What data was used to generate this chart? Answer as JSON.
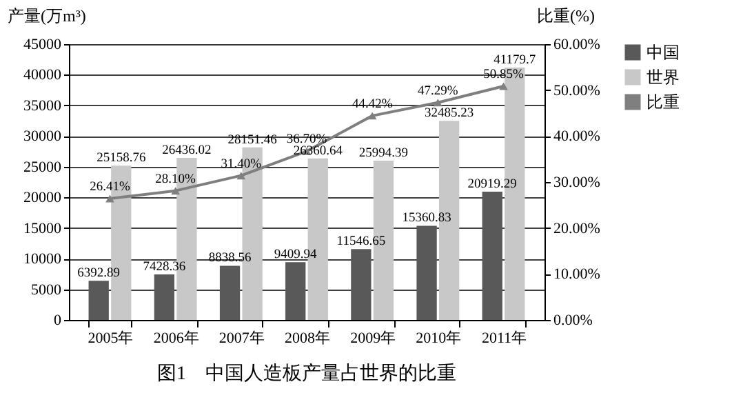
{
  "chart_data": {
    "type": "bar",
    "title": "图1　中国人造板产量占世界的比重",
    "categories": [
      "2005年",
      "2006年",
      "2007年",
      "2008年",
      "2009年",
      "2010年",
      "2011年"
    ],
    "ylabel": "产量(万m³)",
    "y2label": "比重(%)",
    "ylim": [
      0,
      45000
    ],
    "yticks": [
      0,
      5000,
      10000,
      15000,
      20000,
      25000,
      30000,
      35000,
      40000,
      45000
    ],
    "y2lim": [
      0,
      60
    ],
    "y2ticks": [
      {
        "value": 0,
        "label": "0.00%"
      },
      {
        "value": 10,
        "label": "10.00%"
      },
      {
        "value": 20,
        "label": "20.00%"
      },
      {
        "value": 30,
        "label": "30.00%"
      },
      {
        "value": 40,
        "label": "40.00%"
      },
      {
        "value": 50,
        "label": "50.00%"
      },
      {
        "value": 60,
        "label": "60.00%"
      }
    ],
    "grid": "y",
    "legend": "right",
    "series": [
      {
        "name": "中国",
        "color": "#595959",
        "values": [
          6392.89,
          7428.36,
          8838.56,
          9409.94,
          11546.65,
          15360.83,
          20919.29
        ],
        "value_labels": [
          "6392.89",
          "7428.36",
          "8838.56",
          "9409.94",
          "11546.65",
          "15360.83",
          "20919.29"
        ]
      },
      {
        "name": "世界",
        "color": "#c8c8c8",
        "values": [
          25158.76,
          26436.02,
          28151.46,
          26360.64,
          25994.39,
          32485.23,
          41179.7
        ],
        "value_labels": [
          "25158.76",
          "26436.02",
          "28151.46",
          "26360.64",
          "25994.39",
          "32485.23",
          "41179.7"
        ]
      },
      {
        "name": "比重",
        "type": "line",
        "axis": "y2",
        "marker": "triangle",
        "color": "#7f7f7f",
        "values": [
          26.41,
          28.1,
          31.4,
          36.7,
          44.42,
          47.29,
          50.85
        ],
        "value_labels": [
          "26.41%",
          "28.10%",
          "31.40%",
          "36.70%",
          "44.42%",
          "47.29%",
          "50.85%"
        ]
      }
    ]
  }
}
